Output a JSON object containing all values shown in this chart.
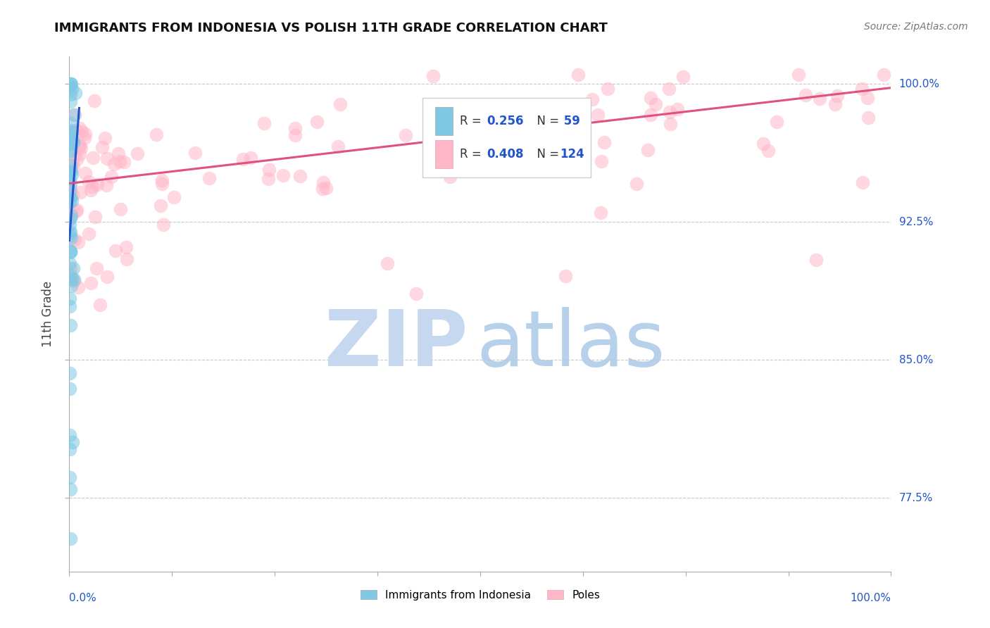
{
  "title": "IMMIGRANTS FROM INDONESIA VS POLISH 11TH GRADE CORRELATION CHART",
  "source": "Source: ZipAtlas.com",
  "ylabel": "11th Grade",
  "ylabel_right_labels": [
    "100.0%",
    "92.5%",
    "85.0%",
    "77.5%"
  ],
  "ylabel_right_values": [
    1.0,
    0.925,
    0.85,
    0.775
  ],
  "legend_r_indonesia": "R = ",
  "legend_r_indonesia_val": "0.256",
  "legend_n_indonesia": "N = ",
  "legend_n_indonesia_val": " 59",
  "legend_r_polish": "R = ",
  "legend_r_polish_val": "0.408",
  "legend_n_polish": "N = ",
  "legend_n_polish_val": "124",
  "color_indonesia": "#7ec8e3",
  "color_polish": "#ffb6c8",
  "color_trendline_indonesia": "#2255cc",
  "color_trendline_polish": "#e05080",
  "color_legend_val": "#2255cc",
  "background_color": "#ffffff",
  "grid_color": "#bbbbbb",
  "watermark_zip_color": "#c5d8f0",
  "watermark_atlas_color": "#b0cce8",
  "xlim": [
    0.0,
    1.0
  ],
  "ylim": [
    0.735,
    1.015
  ],
  "yticks": [
    0.775,
    0.85,
    0.925,
    1.0
  ],
  "xticks": [
    0.0,
    0.125,
    0.25,
    0.375,
    0.5,
    0.625,
    0.75,
    0.875,
    1.0
  ]
}
